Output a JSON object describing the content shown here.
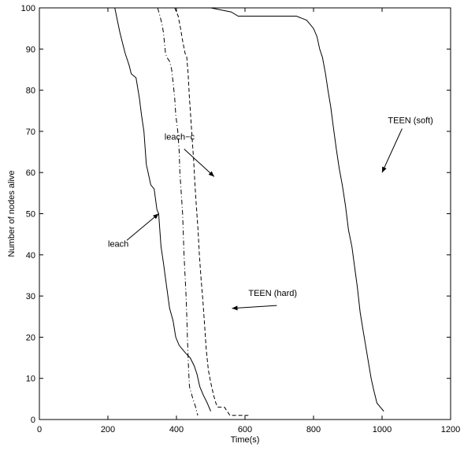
{
  "chart_data": {
    "type": "line",
    "title": "",
    "xlabel": "Time(s)",
    "ylabel": "Number of nodes alive",
    "xlim": [
      0,
      1200
    ],
    "ylim": [
      0,
      100
    ],
    "xticks": [
      0,
      200,
      400,
      600,
      800,
      1000,
      1200
    ],
    "yticks": [
      0,
      10,
      20,
      30,
      40,
      50,
      60,
      70,
      80,
      90,
      100
    ],
    "grid": false,
    "series": [
      {
        "name": "leach",
        "style": "solid",
        "color": "#000000",
        "points": [
          [
            220,
            100
          ],
          [
            235,
            94
          ],
          [
            250,
            89
          ],
          [
            262,
            86
          ],
          [
            268,
            84
          ],
          [
            282,
            83
          ],
          [
            292,
            78
          ],
          [
            298,
            74
          ],
          [
            305,
            70
          ],
          [
            312,
            62
          ],
          [
            325,
            57
          ],
          [
            335,
            56
          ],
          [
            343,
            51
          ],
          [
            348,
            50
          ],
          [
            355,
            42
          ],
          [
            362,
            38
          ],
          [
            370,
            33
          ],
          [
            380,
            27
          ],
          [
            390,
            24
          ],
          [
            398,
            20
          ],
          [
            408,
            18
          ],
          [
            418,
            17
          ],
          [
            428,
            16
          ],
          [
            440,
            15
          ],
          [
            452,
            13
          ],
          [
            460,
            11
          ],
          [
            468,
            8
          ],
          [
            478,
            6
          ],
          [
            490,
            4
          ],
          [
            500,
            2
          ]
        ]
      },
      {
        "name": "leach-c",
        "style": "dashdot",
        "color": "#000000",
        "points": [
          [
            345,
            100
          ],
          [
            352,
            98
          ],
          [
            358,
            96
          ],
          [
            362,
            94
          ],
          [
            368,
            89
          ],
          [
            372,
            88
          ],
          [
            380,
            87
          ],
          [
            386,
            85
          ],
          [
            390,
            82
          ],
          [
            395,
            78
          ],
          [
            398,
            74
          ],
          [
            404,
            70
          ],
          [
            408,
            65
          ],
          [
            410,
            60
          ],
          [
            414,
            55
          ],
          [
            418,
            50
          ],
          [
            420,
            45
          ],
          [
            422,
            40
          ],
          [
            425,
            35
          ],
          [
            428,
            30
          ],
          [
            430,
            25
          ],
          [
            432,
            20
          ],
          [
            434,
            15
          ],
          [
            436,
            11
          ],
          [
            438,
            8
          ],
          [
            448,
            5
          ],
          [
            456,
            3
          ],
          [
            462,
            1
          ]
        ]
      },
      {
        "name": "TEEN (hard)",
        "style": "dashed",
        "color": "#000000",
        "points": [
          [
            395,
            100
          ],
          [
            405,
            98
          ],
          [
            412,
            95
          ],
          [
            418,
            92
          ],
          [
            425,
            89
          ],
          [
            430,
            88
          ],
          [
            434,
            84
          ],
          [
            438,
            78
          ],
          [
            442,
            73
          ],
          [
            446,
            68
          ],
          [
            450,
            63
          ],
          [
            454,
            57
          ],
          [
            458,
            52
          ],
          [
            463,
            46
          ],
          [
            467,
            40
          ],
          [
            472,
            34
          ],
          [
            477,
            29
          ],
          [
            482,
            23
          ],
          [
            487,
            17
          ],
          [
            493,
            12
          ],
          [
            500,
            9
          ],
          [
            508,
            6
          ],
          [
            515,
            4
          ],
          [
            520,
            3
          ],
          [
            540,
            3
          ],
          [
            548,
            2
          ],
          [
            556,
            1
          ],
          [
            610,
            1
          ]
        ]
      },
      {
        "name": "TEEN (soft)",
        "style": "solid",
        "color": "#000000",
        "points": [
          [
            400,
            100
          ],
          [
            500,
            100
          ],
          [
            560,
            99
          ],
          [
            580,
            98
          ],
          [
            750,
            98
          ],
          [
            780,
            97
          ],
          [
            800,
            95
          ],
          [
            810,
            93
          ],
          [
            818,
            90
          ],
          [
            826,
            88
          ],
          [
            835,
            84
          ],
          [
            842,
            80
          ],
          [
            850,
            76
          ],
          [
            858,
            71
          ],
          [
            866,
            66
          ],
          [
            875,
            61
          ],
          [
            884,
            57
          ],
          [
            893,
            52
          ],
          [
            902,
            46
          ],
          [
            912,
            42
          ],
          [
            920,
            37
          ],
          [
            928,
            32
          ],
          [
            936,
            26
          ],
          [
            944,
            22
          ],
          [
            952,
            18
          ],
          [
            960,
            14
          ],
          [
            968,
            10
          ],
          [
            976,
            7
          ],
          [
            985,
            4
          ],
          [
            995,
            3
          ],
          [
            1005,
            2
          ]
        ]
      }
    ],
    "annotations": [
      {
        "text": "TEEN (soft)",
        "x": 1017,
        "y": 72,
        "arrow_to": [
          1000,
          60
        ]
      },
      {
        "text": "leach−c",
        "x": 365,
        "y": 68,
        "arrow_to": [
          510,
          59
        ]
      },
      {
        "text": "leach",
        "x": 200,
        "y": 42,
        "arrow_to": [
          348,
          50
        ]
      },
      {
        "text": "TEEN (hard)",
        "x": 610,
        "y": 30,
        "arrow_to": [
          562,
          27
        ]
      }
    ]
  }
}
